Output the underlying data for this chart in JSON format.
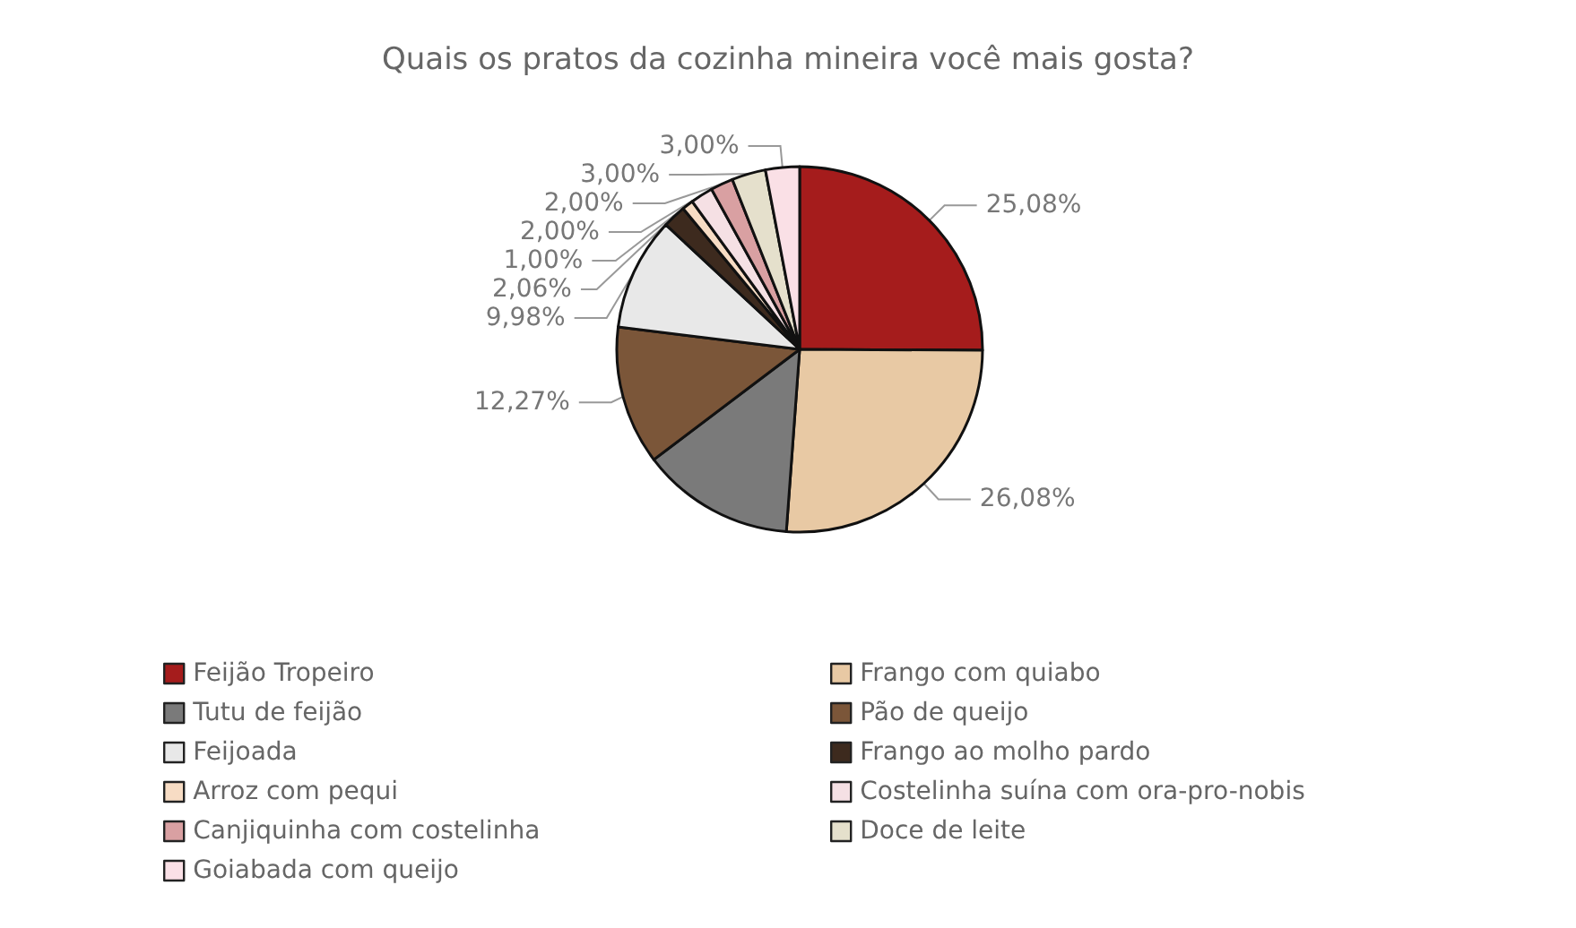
{
  "chart_data": {
    "type": "pie",
    "title": "Quais os pratos da cozinha mineira você mais gosta?",
    "categories": [
      "Feijão Tropeiro",
      "Frango com quiabo",
      "Tutu de feijão",
      "Pão de queijo",
      "Feijoada",
      "Frango ao molho pardo",
      "Arroz com pequi",
      "Costelinha suína com ora-pro-nobis",
      "Canjiquinha com costelinha",
      "Doce de leite",
      "Goiabada com queijo"
    ],
    "values": [
      25.08,
      26.08,
      13.53,
      12.27,
      9.98,
      2.06,
      1.0,
      2.0,
      2.0,
      3.0,
      3.0
    ],
    "value_labels": [
      "25,08%",
      "26,08%",
      null,
      "12,27%",
      "9,98%",
      "2,06%",
      "1,00%",
      "2,00%",
      "2,00%",
      "3,00%",
      "3,00%"
    ],
    "colors": [
      "#a51c1c",
      "#e8c9a4",
      "#7a7a7a",
      "#7b5639",
      "#e8e8e8",
      "#3d2a1e",
      "#f7dcc4",
      "#f5e0e4",
      "#d9a0a2",
      "#e5e0cc",
      "#fae0e6"
    ],
    "legend": "bottom"
  }
}
